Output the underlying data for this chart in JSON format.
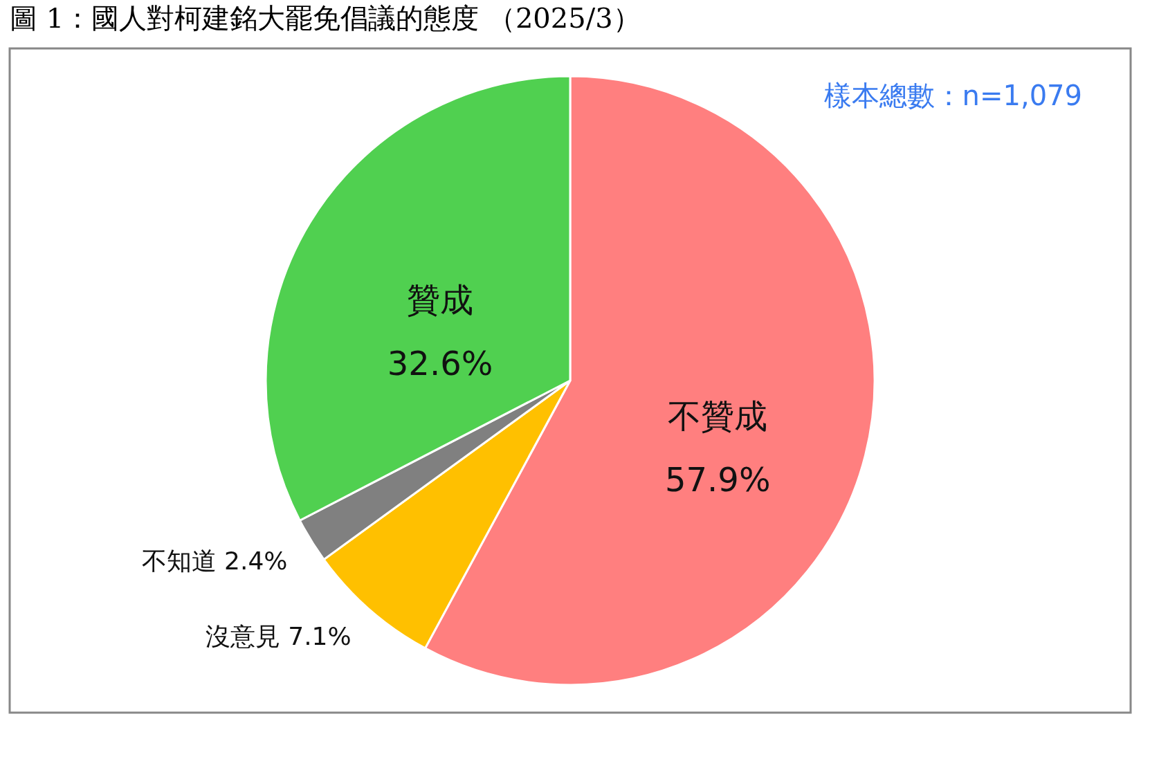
{
  "chart_data": {
    "type": "pie",
    "title": "圖 1：國人對柯建銘大罷免倡議的態度 （2025/3）",
    "categories": [
      "不贊成",
      "沒意見",
      "不知道",
      "贊成"
    ],
    "values": [
      57.9,
      7.1,
      2.4,
      32.6
    ],
    "colors": [
      "#ff7f7f",
      "#ffc000",
      "#808080",
      "#50d050"
    ],
    "value_labels": [
      "57.9%",
      "7.1%",
      "2.4%",
      "32.6%"
    ],
    "annotations": [
      "樣本總數：n=1,079"
    ]
  }
}
